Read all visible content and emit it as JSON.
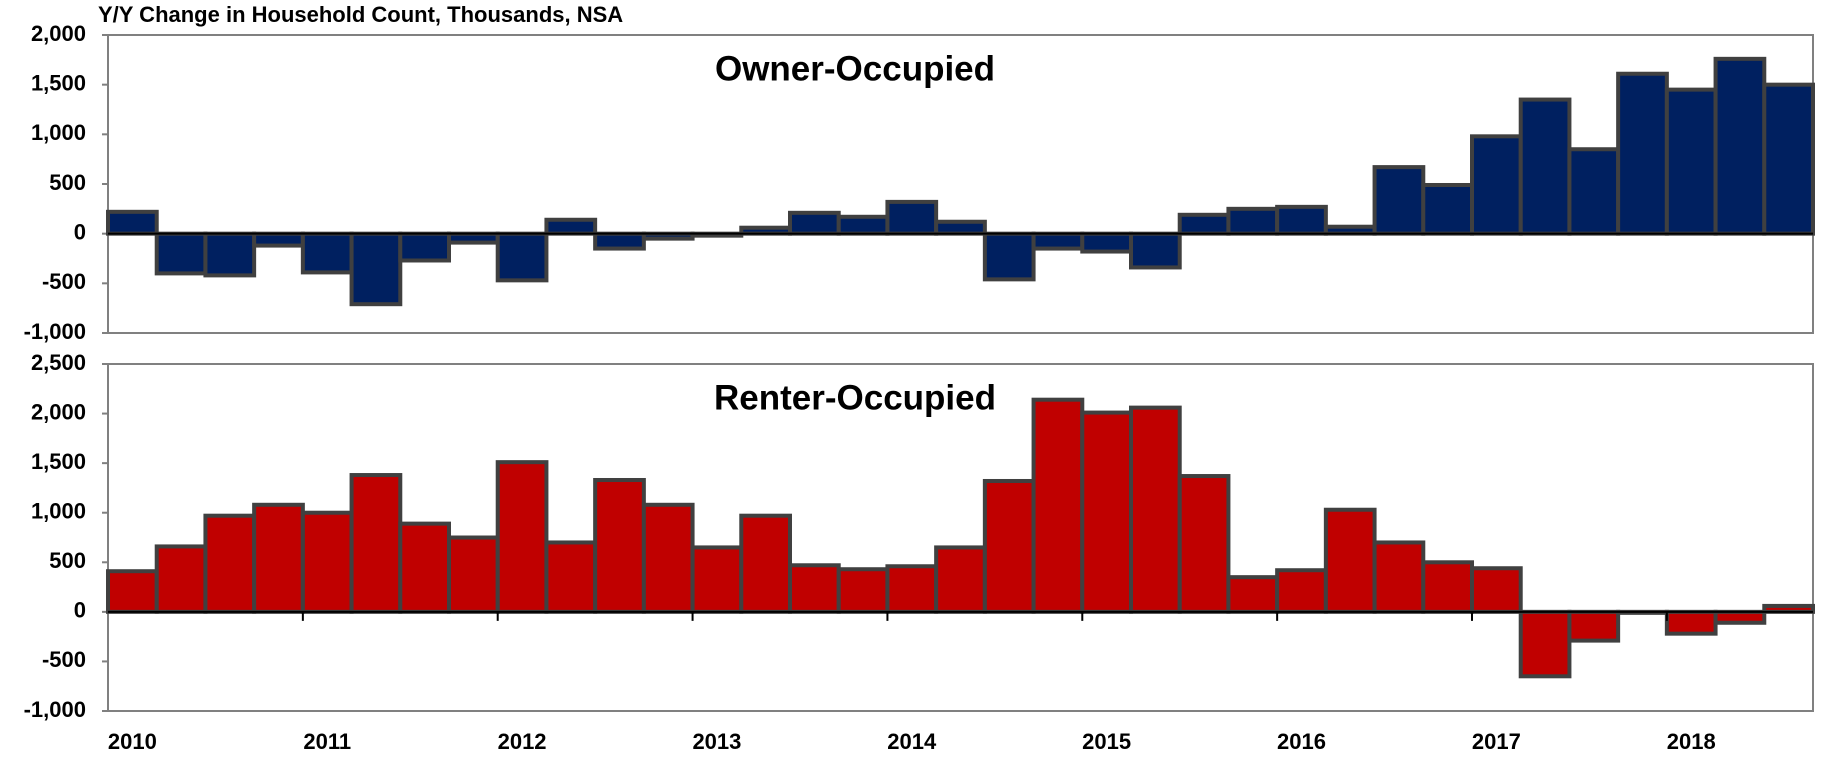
{
  "chart_data": [
    {
      "type": "bar",
      "ylabel": "Y/Y Change in Household Count, Thousands, NSA",
      "title": "Owner-Occupied",
      "title_color": "#002060",
      "color": "#002060",
      "values": [
        220,
        -400,
        -420,
        -120,
        -390,
        -710,
        -270,
        -90,
        -470,
        140,
        -150,
        -50,
        -20,
        60,
        210,
        170,
        320,
        120,
        -460,
        -150,
        -180,
        -340,
        190,
        250,
        270,
        70,
        670,
        490,
        980,
        1350,
        850,
        1610,
        1450,
        1760,
        1500
      ],
      "ylim": [
        -1000,
        2000
      ],
      "yticks": [
        {
          "value": -1000,
          "label": "-1,000"
        },
        -500,
        0,
        500,
        {
          "value": 1000,
          "label": "1,000"
        },
        {
          "value": 1500,
          "label": "1,500"
        },
        {
          "value": 2000,
          "label": "2,000"
        }
      ]
    },
    {
      "type": "bar",
      "title": "Renter-Occupied",
      "title_color": "#c00000",
      "color": "#c00000",
      "categories": [
        "2010",
        null,
        null,
        null,
        "2011",
        null,
        null,
        null,
        "2012",
        null,
        null,
        null,
        "2013",
        null,
        null,
        null,
        "2014",
        null,
        null,
        null,
        "2015",
        null,
        null,
        null,
        "2016",
        null,
        null,
        null,
        "2017",
        null,
        null,
        null,
        "2018",
        null,
        null
      ],
      "values": [
        410,
        660,
        970,
        1080,
        1000,
        1380,
        890,
        750,
        1510,
        700,
        1330,
        1080,
        650,
        970,
        470,
        430,
        460,
        650,
        1320,
        2140,
        2010,
        2060,
        1370,
        350,
        420,
        1030,
        700,
        500,
        440,
        -650,
        -290,
        -10,
        -220,
        -110,
        60
      ],
      "ylim": [
        -1000,
        2500
      ],
      "yticks": [
        {
          "value": -1000,
          "label": "-1,000"
        },
        -500,
        0,
        500,
        {
          "value": 1000,
          "label": "1,000"
        },
        {
          "value": 1500,
          "label": "1,500"
        },
        {
          "value": 2000,
          "label": "2,000"
        },
        {
          "value": 2500,
          "label": "2,500"
        }
      ]
    }
  ]
}
